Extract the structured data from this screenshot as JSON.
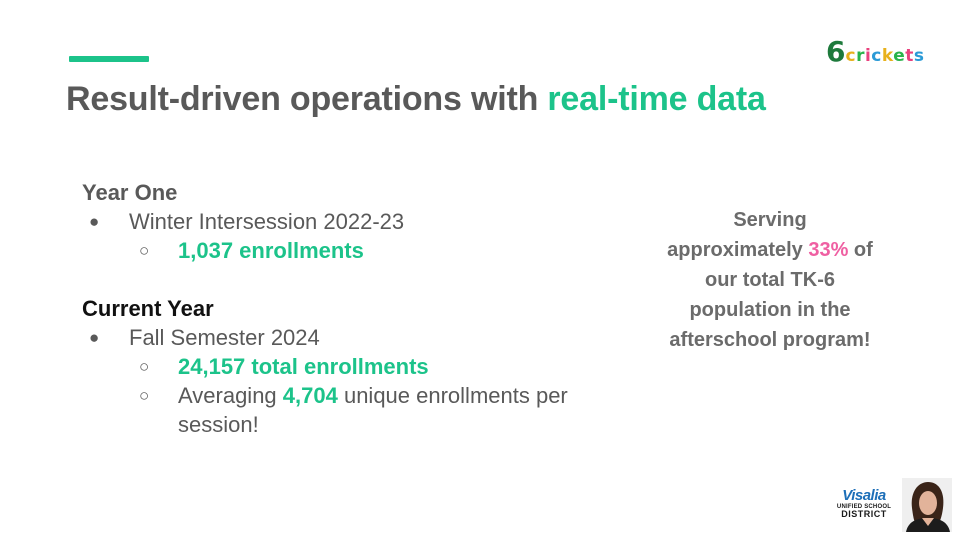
{
  "slide": {
    "title_plain": "Result-driven operations with ",
    "title_highlight": "real-time data"
  },
  "logo": {
    "six": "6",
    "letters": [
      "c",
      "r",
      "i",
      "c",
      "k",
      "e",
      "t",
      "s"
    ]
  },
  "year_one": {
    "heading": "Year One",
    "bullet": "Winter Intersession 2022-23",
    "sub": "1,037 enrollments"
  },
  "current_year": {
    "heading": "Current Year",
    "bullet": "Fall Semester 2024",
    "sub1": "24,157 total enrollments",
    "sub2_pre": "Averaging ",
    "sub2_num": "4,704",
    "sub2_post": " unique enrollments per session!"
  },
  "callout": {
    "line1": "Serving",
    "line2_pre": "approximately ",
    "line2_pct": "33%",
    "line2_post": " of",
    "line3": "our total TK-6",
    "line4": "population in the",
    "line5": "afterschool program!"
  },
  "district_logo": {
    "word": "Visalia",
    "sub": "UNIFIED SCHOOL",
    "dist": "DISTRICT"
  },
  "colors": {
    "accent_green": "#1cc38a",
    "highlight_pink": "#ef5fa2",
    "title_gray": "#595959"
  }
}
